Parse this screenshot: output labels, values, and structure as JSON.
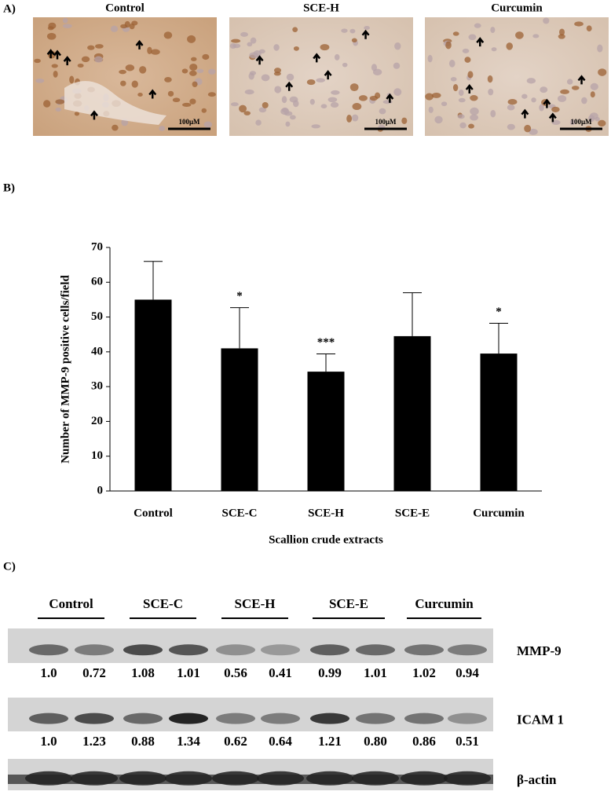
{
  "panel_a": {
    "label": "A)",
    "images": [
      {
        "title": "Control",
        "scale_bar": "100μM"
      },
      {
        "title": "SCE-H",
        "scale_bar": "100μM"
      },
      {
        "title": "Curcumin",
        "scale_bar": "100μM"
      }
    ]
  },
  "panel_b": {
    "label": "B)"
  },
  "chart_data": {
    "type": "bar",
    "categories": [
      "Control",
      "SCE-C",
      "SCE-H",
      "SCE-E",
      "Curcumin"
    ],
    "values": [
      55,
      41,
      34.3,
      44.5,
      39.5
    ],
    "errors": [
      11,
      11.7,
      5.1,
      12.5,
      8.7
    ],
    "significance": [
      null,
      "*",
      "***",
      null,
      "*"
    ],
    "color": "#000000",
    "ylim": [
      0,
      70
    ],
    "yticks": [
      0,
      10,
      20,
      30,
      40,
      50,
      60,
      70
    ],
    "y_label": "Number of MMP-9 positive cells/field",
    "x_label": "Scallion crude extracts"
  },
  "panel_c": {
    "label": "C)",
    "groups": [
      "Control",
      "SCE-C",
      "SCE-H",
      "SCE-E",
      "Curcumin"
    ],
    "rows": [
      {
        "name": "MMP-9",
        "values": [
          "1.0",
          "0.72",
          "1.08",
          "1.01",
          "0.56",
          "0.41",
          "0.99",
          "1.01",
          "1.02",
          "0.94"
        ]
      },
      {
        "name": "ICAM 1",
        "values": [
          "1.0",
          "1.23",
          "0.88",
          "1.34",
          "0.62",
          "0.64",
          "1.21",
          "0.80",
          "0.86",
          "0.51"
        ]
      },
      {
        "name": "β-actin"
      }
    ]
  }
}
